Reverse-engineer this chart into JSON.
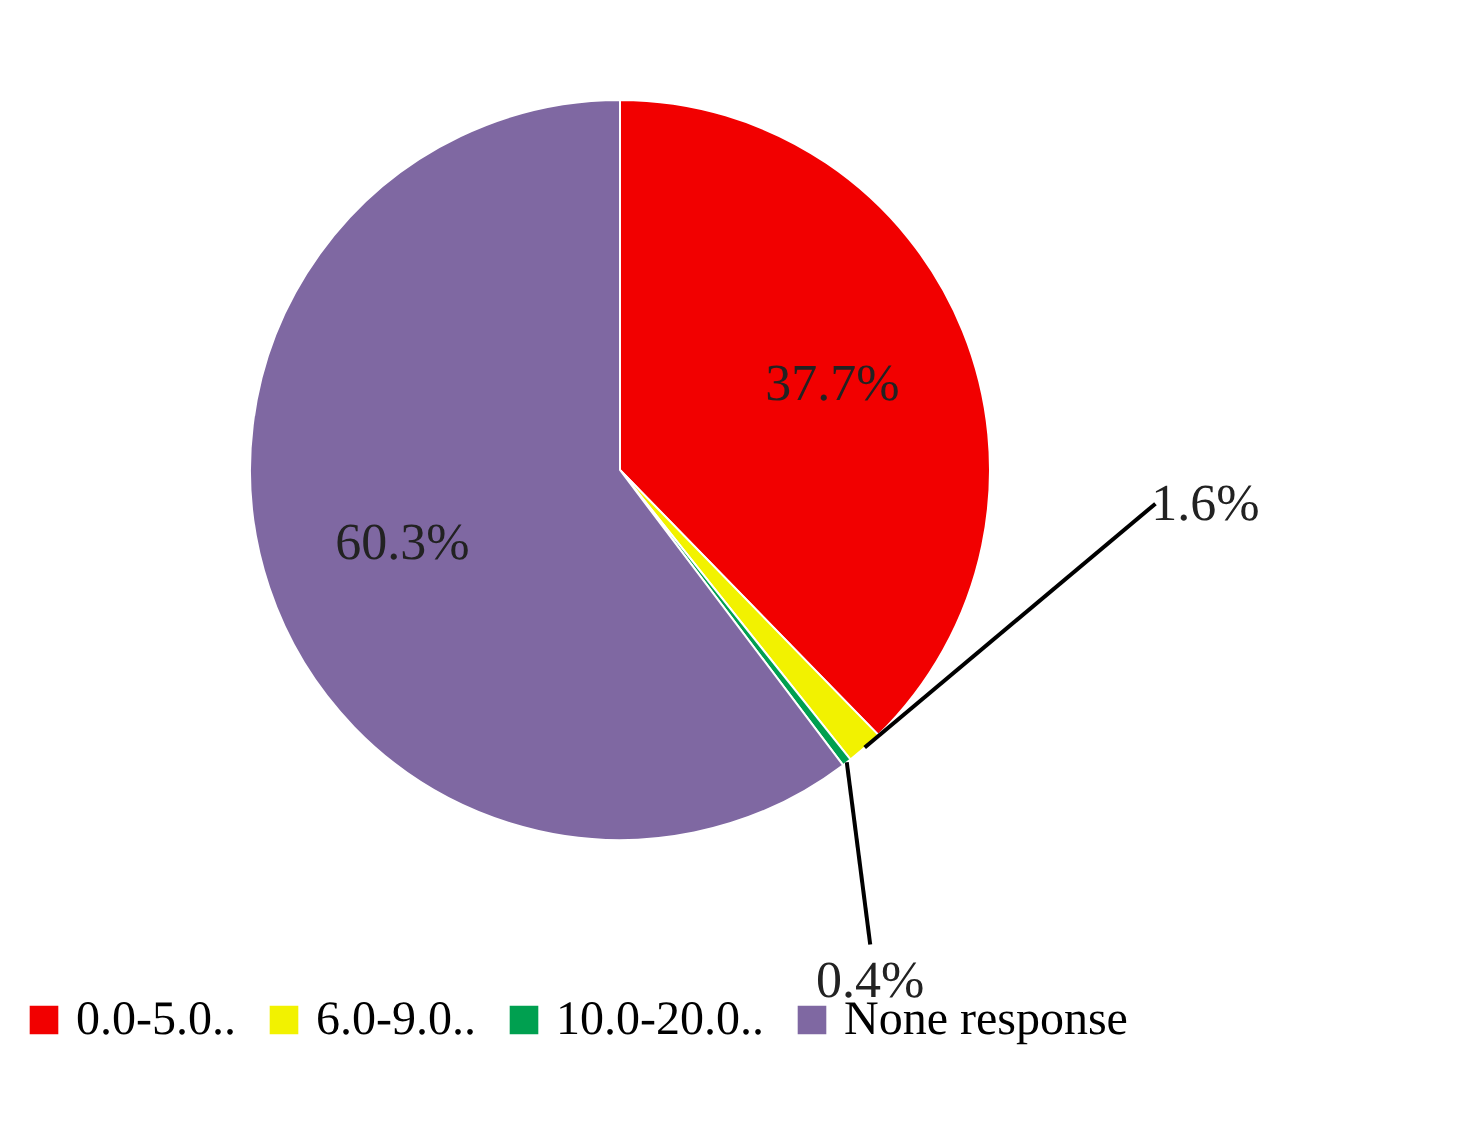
{
  "chart_data": {
    "type": "pie",
    "categories": [
      "0.0-5.0..",
      "6.0-9.0..",
      "10.0-20.0..",
      "None response"
    ],
    "values": [
      37.7,
      1.6,
      0.4,
      60.3
    ],
    "colors": [
      "#f20000",
      "#f2f200",
      "#00a050",
      "#7f68a2"
    ],
    "value_labels": [
      "37.7%",
      "1.6%",
      "0.4%",
      "60.3%"
    ],
    "legend": "bottom"
  }
}
